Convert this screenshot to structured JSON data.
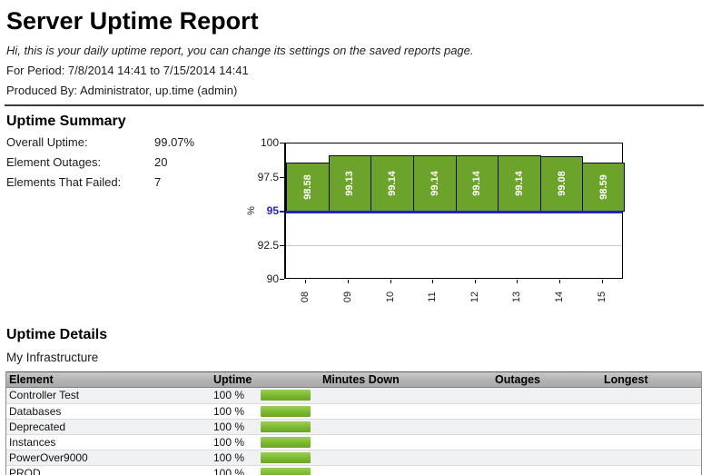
{
  "report": {
    "title": "Server Uptime Report",
    "subtitle": "Hi, this is your daily uptime report, you can change its settings on the saved reports page.",
    "period": "For Period: 7/8/2014 14:41 to 7/15/2014 14:41",
    "produced_by": "Produced By: Administrator, up.time (admin)"
  },
  "summary": {
    "heading": "Uptime Summary",
    "stats": [
      {
        "label": "Overall Uptime:",
        "value": "99.07%"
      },
      {
        "label": "Element Outages:",
        "value": "20"
      },
      {
        "label": "Elements That Failed:",
        "value": "7"
      }
    ]
  },
  "chart_data": {
    "type": "bar",
    "categories": [
      "08",
      "09",
      "10",
      "11",
      "12",
      "13",
      "14",
      "15"
    ],
    "values": [
      98.58,
      99.13,
      99.14,
      99.14,
      99.14,
      99.14,
      99.08,
      98.59
    ],
    "bar_labels": [
      "98.58",
      "99.13",
      "99.14",
      "99.14",
      "99.14",
      "99.14",
      "99.08",
      "98.59"
    ],
    "title": "",
    "xlabel": "",
    "ylabel": "%",
    "ylim": [
      90,
      100
    ],
    "yticks": [
      "100",
      "97.5",
      "95",
      "92.5",
      "90"
    ],
    "ytick_values": [
      100,
      97.5,
      95,
      92.5,
      90
    ],
    "gridline_values": [
      97.5,
      92.5
    ],
    "threshold": 95,
    "bar_base": 95,
    "legend": "none",
    "colors": {
      "bar": "#6ba32b",
      "bar_border": "#0a0a0a",
      "bar_label": "#ffffff",
      "threshold_line": "#2222cc",
      "threshold_tick_label": "#2222cc",
      "axis": "#000000"
    }
  },
  "details": {
    "heading": "Uptime Details",
    "group": "My Infrastructure",
    "columns": [
      "Element",
      "Uptime",
      "Minutes Down",
      "Outages",
      "Longest"
    ],
    "rows": [
      {
        "element": "Controller Test",
        "uptime": "100 %",
        "uptime_pct": 100,
        "minutes_down": "",
        "outages": "",
        "longest": ""
      },
      {
        "element": "Databases",
        "uptime": "100 %",
        "uptime_pct": 100,
        "minutes_down": "",
        "outages": "",
        "longest": ""
      },
      {
        "element": "Deprecated",
        "uptime": "100 %",
        "uptime_pct": 100,
        "minutes_down": "",
        "outages": "",
        "longest": ""
      },
      {
        "element": "Instances",
        "uptime": "100 %",
        "uptime_pct": 100,
        "minutes_down": "",
        "outages": "",
        "longest": ""
      },
      {
        "element": "PowerOver9000",
        "uptime": "100 %",
        "uptime_pct": 100,
        "minutes_down": "",
        "outages": "",
        "longest": ""
      },
      {
        "element": "PROD",
        "uptime": "100 %",
        "uptime_pct": 100,
        "minutes_down": "",
        "outages": "",
        "longest": ""
      }
    ]
  }
}
